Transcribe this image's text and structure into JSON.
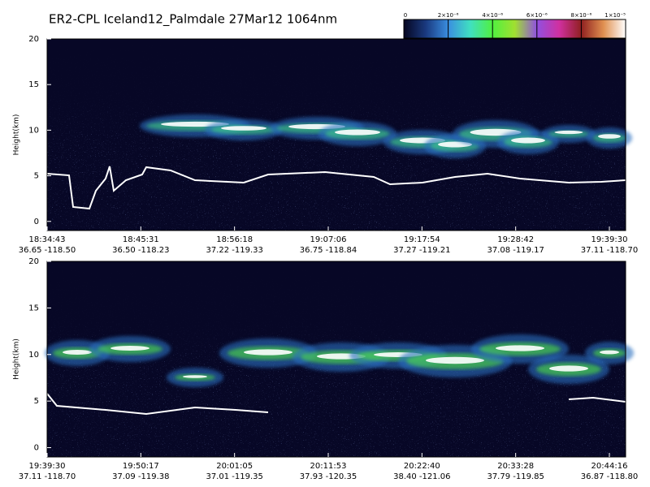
{
  "title": "ER2-CPL Iceland12_Palmdale 27Mar12 1064nm",
  "colorbar": {
    "ticks": [
      {
        "value": 0,
        "label": "0"
      },
      {
        "value": 2e-06,
        "label": "2×10⁻⁶"
      },
      {
        "value": 4e-06,
        "label": "4×10⁻⁶"
      },
      {
        "value": 6e-06,
        "label": "6×10⁻⁶"
      },
      {
        "value": 8e-06,
        "label": "8×10⁻⁶"
      },
      {
        "value": 1e-05,
        "label": "1×10⁻⁵"
      }
    ],
    "lim": [
      0,
      1e-05
    ]
  },
  "chart_data": [
    {
      "type": "heatmap",
      "y_label": "Height(km)",
      "ylim": [
        -1,
        20
      ],
      "yticks": [
        0,
        5,
        10,
        15,
        20
      ],
      "categories": [
        "18:34:43",
        "18:45:31",
        "18:56:18",
        "19:07:06",
        "19:17:54",
        "19:28:42",
        "19:39:30"
      ],
      "locations": [
        "36.65 -118.50",
        "36.50 -118.23",
        "37.22 -119.33",
        "36.75 -118.84",
        "37.27 -119.21",
        "37.08 -119.17",
        "37.11 -118.70"
      ]
    },
    {
      "type": "heatmap",
      "y_label": "Height(km)",
      "ylim": [
        -1,
        20
      ],
      "yticks": [
        0,
        5,
        10,
        15,
        20
      ],
      "categories": [
        "19:39:30",
        "19:50:17",
        "20:01:05",
        "20:11:53",
        "20:22:40",
        "20:33:28",
        "20:44:16"
      ],
      "locations": [
        "37.11 -118.70",
        "37.09 -119.38",
        "37.01 -119.35",
        "37.93 -120.35",
        "38.40 -121.06",
        "37.79 -119.85",
        "36.87 -118.80"
      ]
    }
  ]
}
